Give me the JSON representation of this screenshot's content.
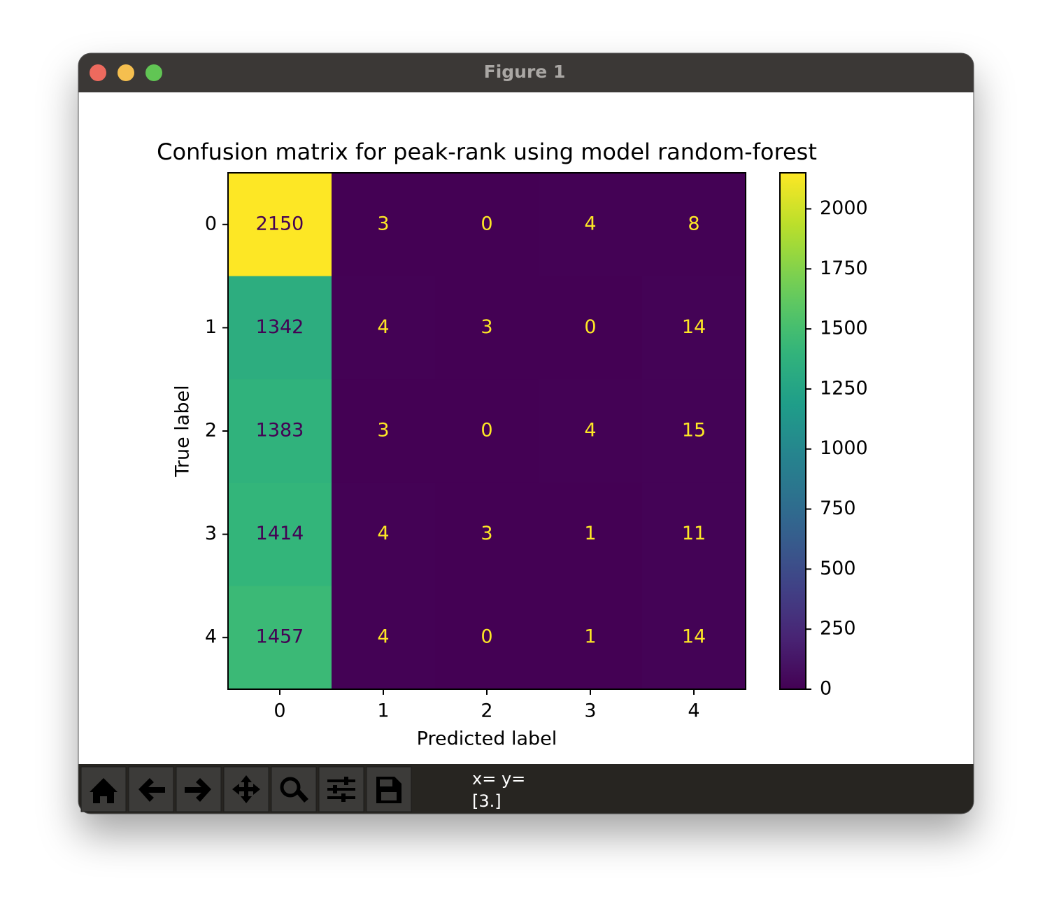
{
  "window": {
    "title": "Figure 1"
  },
  "toolbar": {
    "status": [
      "x= y=",
      "[3.]"
    ]
  },
  "chart_data": {
    "type": "heatmap",
    "title": "Confusion matrix for peak-rank using model random-forest",
    "x_label": "Predicted label",
    "y_label": "True label",
    "x": [
      0,
      1,
      2,
      3,
      4
    ],
    "y": [
      0,
      1,
      2,
      3,
      4
    ],
    "values": [
      [
        2150,
        3,
        0,
        4,
        8
      ],
      [
        1342,
        4,
        3,
        0,
        14
      ],
      [
        1383,
        3,
        0,
        4,
        15
      ],
      [
        1414,
        4,
        3,
        1,
        11
      ],
      [
        1457,
        4,
        0,
        1,
        14
      ]
    ],
    "colormap": "viridis",
    "clim": [
      0,
      2150
    ],
    "colorbar_ticks": [
      0,
      250,
      500,
      750,
      1000,
      1250,
      1500,
      1750,
      2000
    ]
  }
}
